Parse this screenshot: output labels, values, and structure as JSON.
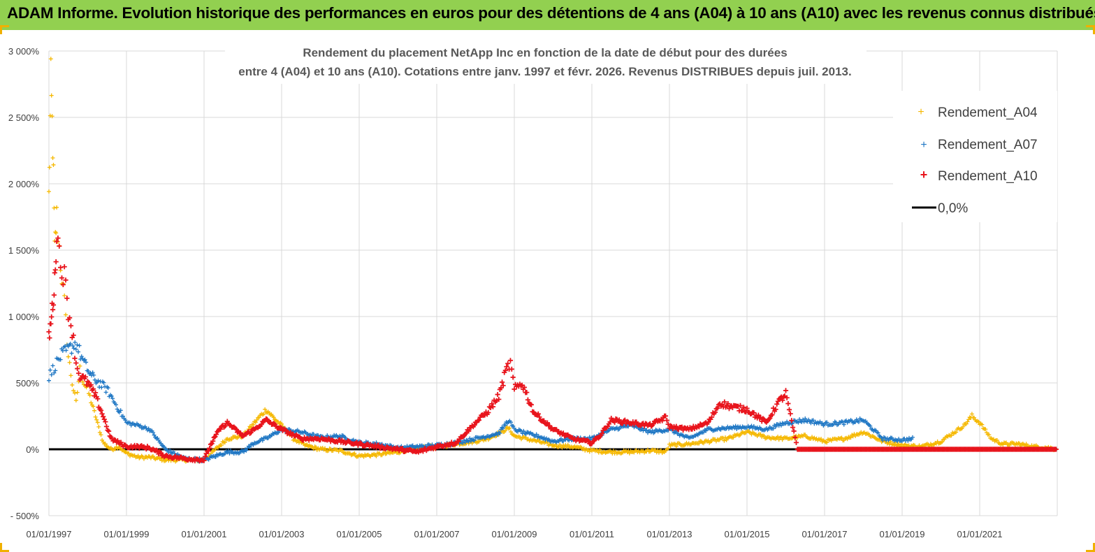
{
  "banner": {
    "title": "ADAM Informe. Evolution historique des performances en euros pour des détentions de 4 ans (A04) à 10 ans (A10) avec les revenus connus distribués"
  },
  "colors": {
    "banner_bg": "#92d050",
    "a04": "#f5b800",
    "a07": "#1f77c4",
    "a10": "#e8141c",
    "zero": "#000000",
    "grid": "#d9d9d9"
  },
  "chart_data": {
    "type": "scatter",
    "title_line1": "Rendement du placement NetApp Inc en fonction de la date de début pour des durées",
    "title_line2": "entre 4 (A04) et 10 ans (A10). Cotations entre janv. 1997 et févr. 2026. Revenus DISTRIBUES depuis juil. 2013.",
    "xlabel": "",
    "ylabel": "",
    "x_range": [
      "01/01/1997",
      "01/02/2023"
    ],
    "ylim": [
      -500,
      3000
    ],
    "y_ticks": [
      -500,
      0,
      500,
      1000,
      1500,
      2000,
      2500,
      3000
    ],
    "y_tick_labels": [
      "- 500%",
      "0%",
      "500%",
      "1 000%",
      "1 500%",
      "2 000%",
      "2 500%",
      "3 000%"
    ],
    "x_tick_labels": [
      "01/01/1997",
      "01/01/1999",
      "01/01/2001",
      "01/01/2003",
      "01/01/2005",
      "01/01/2007",
      "01/01/2009",
      "01/01/2011",
      "01/01/2013",
      "01/01/2015",
      "01/01/2017",
      "01/01/2019",
      "01/01/2021"
    ],
    "grid": true,
    "legend_position": "top-right",
    "series": [
      {
        "name": "Rendement_A04",
        "marker": "plus",
        "x": [
          1997.0,
          1997.05,
          1997.1,
          1997.15,
          1997.2,
          1997.3,
          1997.4,
          1997.5,
          1997.6,
          1997.7,
          1997.8,
          1997.9,
          1998.0,
          1998.2,
          1998.4,
          1998.6,
          1998.8,
          1999.0,
          1999.3,
          1999.6,
          2000.0,
          2000.5,
          2001.0,
          2001.3,
          2001.6,
          2002.0,
          2002.3,
          2002.6,
          2002.85,
          2003.0,
          2003.3,
          2003.6,
          2004.0,
          2004.5,
          2005.0,
          2005.5,
          2006.0,
          2006.5,
          2007.0,
          2007.5,
          2008.0,
          2008.3,
          2008.6,
          2008.85,
          2009.0,
          2009.3,
          2009.6,
          2010.0,
          2010.5,
          2011.0,
          2011.5,
          2012.0,
          2012.5,
          2012.9,
          2013.0,
          2013.5,
          2014.0,
          2014.5,
          2015.0,
          2015.5,
          2016.0,
          2016.5,
          2017.0,
          2017.5,
          2018.0,
          2018.5,
          2019.0,
          2019.5,
          2020.0,
          2020.3,
          2020.6,
          2020.8,
          2021.0,
          2021.3,
          2021.6,
          2022.0,
          2022.4,
          2022.8,
          2023.0
        ],
        "y": [
          1900,
          2750,
          2300,
          1500,
          1750,
          1400,
          1100,
          700,
          500,
          350,
          600,
          500,
          450,
          250,
          50,
          0,
          20,
          -30,
          -60,
          -60,
          -80,
          -80,
          -80,
          0,
          80,
          100,
          200,
          300,
          220,
          180,
          80,
          30,
          0,
          -10,
          -50,
          -40,
          -20,
          10,
          20,
          40,
          60,
          80,
          120,
          160,
          100,
          80,
          60,
          30,
          20,
          -10,
          -20,
          -20,
          -10,
          -20,
          30,
          40,
          60,
          80,
          130,
          90,
          80,
          100,
          60,
          80,
          130,
          60,
          30,
          20,
          60,
          120,
          180,
          250,
          200,
          80,
          40,
          40,
          20,
          10,
          0
        ]
      },
      {
        "name": "Rendement_A07",
        "marker": "plus",
        "x": [
          1997.0,
          1997.1,
          1997.2,
          1997.3,
          1997.5,
          1997.7,
          1997.9,
          1998.1,
          1998.3,
          1998.5,
          1998.7,
          1999.0,
          1999.3,
          1999.6,
          2000.0,
          2000.5,
          2001.0,
          2001.3,
          2001.6,
          2002.0,
          2002.3,
          2002.6,
          2003.0,
          2003.5,
          2004.0,
          2004.5,
          2005.0,
          2005.5,
          2006.0,
          2006.5,
          2007.0,
          2007.5,
          2008.0,
          2008.3,
          2008.6,
          2008.85,
          2009.0,
          2009.3,
          2009.6,
          2010.0,
          2010.5,
          2011.0,
          2011.5,
          2012.0,
          2012.5,
          2013.0,
          2013.5,
          2014.0,
          2014.5,
          2015.0,
          2015.5,
          2016.0,
          2016.5,
          2017.0,
          2017.5,
          2018.0,
          2018.5,
          2019.0,
          2019.3
        ],
        "y": [
          550,
          600,
          650,
          700,
          750,
          800,
          650,
          550,
          500,
          450,
          350,
          200,
          180,
          150,
          0,
          -70,
          -80,
          -50,
          -20,
          -20,
          50,
          80,
          150,
          130,
          90,
          100,
          50,
          40,
          10,
          20,
          30,
          50,
          80,
          100,
          120,
          220,
          150,
          120,
          100,
          60,
          80,
          80,
          150,
          180,
          130,
          150,
          80,
          150,
          160,
          170,
          150,
          200,
          220,
          190,
          200,
          220,
          80,
          70,
          80
        ]
      },
      {
        "name": "Rendement_A10",
        "marker": "plus",
        "x": [
          1997.0,
          1997.05,
          1997.1,
          1997.15,
          1997.2,
          1997.3,
          1997.4,
          1997.5,
          1997.6,
          1997.7,
          1997.8,
          1998.0,
          1998.2,
          1998.4,
          1998.6,
          1998.8,
          1999.0,
          1999.3,
          1999.6,
          2000.0,
          2000.5,
          2001.0,
          2001.2,
          2001.4,
          2001.6,
          2002.0,
          2002.3,
          2002.6,
          2003.0,
          2003.5,
          2004.0,
          2004.5,
          2005.0,
          2005.5,
          2006.0,
          2006.5,
          2007.0,
          2007.5,
          2008.0,
          2008.3,
          2008.6,
          2008.8,
          2008.9,
          2009.0,
          2009.2,
          2009.5,
          2010.0,
          2010.5,
          2011.0,
          2011.2,
          2011.5,
          2012.0,
          2012.5,
          2012.9,
          2013.0,
          2013.5,
          2014.0,
          2014.3,
          2014.6,
          2015.0,
          2015.5,
          2015.8,
          2016.0,
          2016.3,
          2016.6,
          2017.0,
          2017.5,
          2018.0,
          2018.5,
          2019.0,
          2019.5,
          2020.0,
          2020.5,
          2021.0,
          2021.5,
          2022.0,
          2022.5,
          2023.0
        ],
        "y": [
          850,
          950,
          1100,
          1250,
          1650,
          1400,
          1300,
          1050,
          900,
          650,
          550,
          500,
          400,
          250,
          80,
          50,
          20,
          20,
          10,
          -50,
          -70,
          -80,
          50,
          150,
          200,
          100,
          150,
          220,
          150,
          80,
          80,
          60,
          40,
          20,
          0,
          -20,
          20,
          50,
          200,
          280,
          400,
          600,
          650,
          450,
          500,
          280,
          150,
          80,
          50,
          100,
          220,
          200,
          180,
          240,
          170,
          150,
          200,
          350,
          320,
          300,
          200,
          350,
          420,
          0,
          0,
          0,
          0,
          0,
          0,
          0,
          0,
          0,
          0,
          0,
          0,
          0,
          0,
          0
        ]
      }
    ],
    "reference_line": {
      "name": "0,0%",
      "y": 0
    }
  }
}
